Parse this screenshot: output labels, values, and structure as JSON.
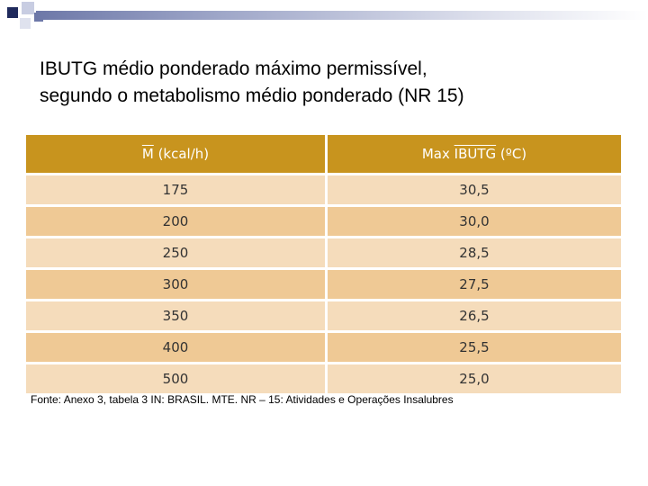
{
  "slide": {
    "title_line1": "IBUTG médio ponderado máximo permissível,",
    "title_line2": "segundo o metabolismo médio ponderado (NR 15)"
  },
  "table": {
    "header": {
      "col1_symbol": "M",
      "col1_unit": " (kcal/h)",
      "col2_prefix": "Max ",
      "col2_symbol": "IBUTG",
      "col2_unit": " (ºC)"
    },
    "rows": [
      {
        "m": "175",
        "ibutg": "30,5"
      },
      {
        "m": "200",
        "ibutg": "30,0"
      },
      {
        "m": "250",
        "ibutg": "28,5"
      },
      {
        "m": "300",
        "ibutg": "27,5"
      },
      {
        "m": "350",
        "ibutg": "26,5"
      },
      {
        "m": "400",
        "ibutg": "25,5"
      },
      {
        "m": "500",
        "ibutg": "25,0"
      }
    ]
  },
  "source": "Fonte: Anexo 3, tabela 3 IN: BRASIL. MTE. NR – 15: Atividades e Operações Insalubres",
  "colors": {
    "header": "#c8941e",
    "row_light": "#f5dcbb",
    "row_dark": "#efc995",
    "deco_dark": "#1f2a5c",
    "deco_light": "#9ea6c8"
  }
}
